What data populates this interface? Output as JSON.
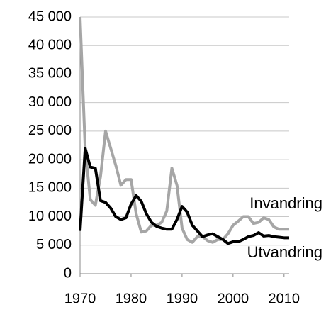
{
  "chart_data": {
    "type": "line",
    "x": [
      1970,
      1971,
      1972,
      1973,
      1974,
      1975,
      1976,
      1977,
      1978,
      1979,
      1980,
      1981,
      1982,
      1983,
      1984,
      1985,
      1986,
      1987,
      1988,
      1989,
      1990,
      1991,
      1992,
      1993,
      1994,
      1995,
      1996,
      1997,
      1998,
      1999,
      2000,
      2001,
      2002,
      2003,
      2004,
      2005,
      2006,
      2007,
      2008,
      2009,
      2010,
      2011
    ],
    "series": [
      {
        "name": "Invandring",
        "color": "#a6a6a6",
        "values": [
          45000,
          22000,
          13000,
          12000,
          17000,
          25000,
          22000,
          19000,
          15500,
          16500,
          16500,
          10500,
          7300,
          7500,
          8500,
          8500,
          9000,
          11000,
          18500,
          15500,
          8000,
          6000,
          5500,
          6500,
          6500,
          5800,
          5500,
          6000,
          6000,
          7000,
          8500,
          9200,
          10000,
          10000,
          8800,
          9000,
          9800,
          9500,
          8200,
          7800,
          7800,
          7800
        ]
      },
      {
        "name": "Utvandring",
        "color": "#000000",
        "values": [
          7500,
          22000,
          18700,
          18500,
          12800,
          12500,
          11500,
          10000,
          9500,
          9800,
          12200,
          13700,
          12700,
          10500,
          9000,
          8300,
          8000,
          7800,
          7800,
          9500,
          11800,
          10800,
          8500,
          7500,
          6500,
          6800,
          7000,
          6500,
          6000,
          5300,
          5600,
          5600,
          6000,
          6500,
          6700,
          7200,
          6600,
          6700,
          6500,
          6400,
          6300,
          6300
        ]
      }
    ],
    "xlim": [
      1970,
      2011
    ],
    "xticks": [
      1970,
      1980,
      1990,
      2000,
      2010
    ],
    "ylim": [
      0,
      45000
    ],
    "yticks": [
      0,
      {
        "value": 5000,
        "label": "5 000"
      },
      {
        "value": 10000,
        "label": "10 000"
      },
      {
        "value": 15000,
        "label": "15 000"
      },
      {
        "value": 20000,
        "label": "20 000"
      },
      {
        "value": 25000,
        "label": "25 000"
      },
      {
        "value": 30000,
        "label": "30 000"
      },
      {
        "value": 35000,
        "label": "35 000"
      },
      {
        "value": 40000,
        "label": "40 000"
      },
      {
        "value": 45000,
        "label": "45 000"
      }
    ],
    "grid": true
  }
}
